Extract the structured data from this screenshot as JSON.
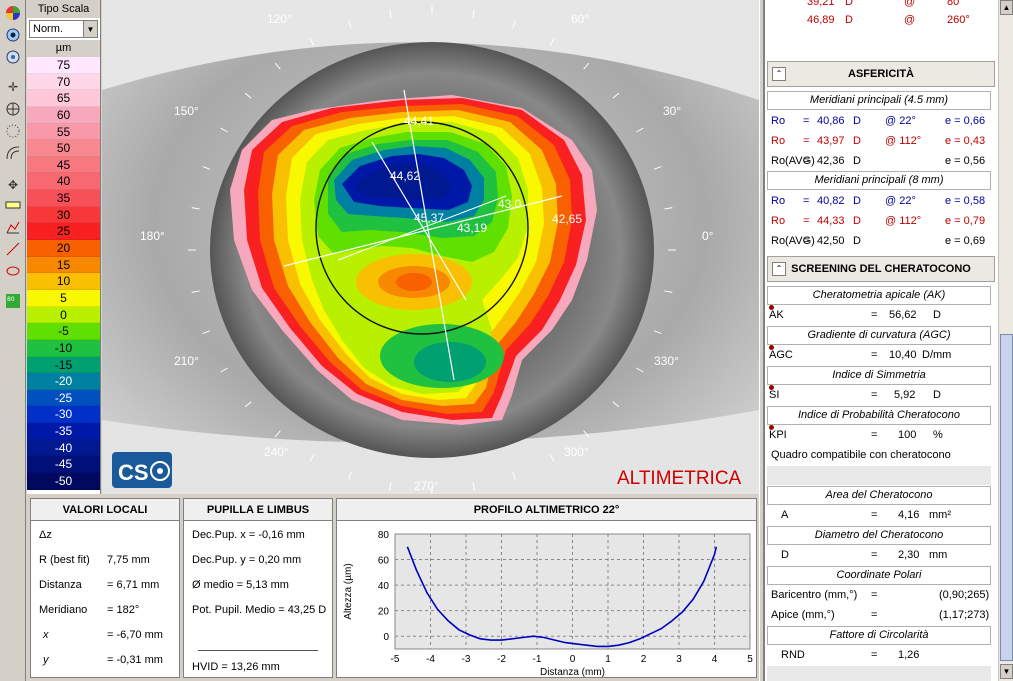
{
  "scale": {
    "title": "Tipo Scala",
    "select_value": "Norm.",
    "unit": "µm",
    "steps": [
      {
        "v": "75",
        "c": "#ffe8ff"
      },
      {
        "v": "70",
        "c": "#ffd8e8"
      },
      {
        "v": "65",
        "c": "#ffc8d8"
      },
      {
        "v": "60",
        "c": "#f8a8bc"
      },
      {
        "v": "55",
        "c": "#f898a8"
      },
      {
        "v": "50",
        "c": "#f88890"
      },
      {
        "v": "45",
        "c": "#f87880"
      },
      {
        "v": "40",
        "c": "#f86870"
      },
      {
        "v": "35",
        "c": "#f85058"
      },
      {
        "v": "30",
        "c": "#f83838"
      },
      {
        "v": "25",
        "c": "#f82020"
      },
      {
        "v": "20",
        "c": "#f86000"
      },
      {
        "v": "15",
        "c": "#f88800"
      },
      {
        "v": "10",
        "c": "#f8c000"
      },
      {
        "v": "5",
        "c": "#f8f800"
      },
      {
        "v": "0",
        "c": "#b8f000"
      },
      {
        "v": "-5",
        "c": "#60e000"
      },
      {
        "v": "-10",
        "c": "#20c040"
      },
      {
        "v": "-15",
        "c": "#00a070"
      },
      {
        "v": "-20",
        "c": "#0080a0"
      },
      {
        "v": "-25",
        "c": "#0050c0"
      },
      {
        "v": "-30",
        "c": "#0030c8"
      },
      {
        "v": "-35",
        "c": "#0018a8"
      },
      {
        "v": "-40",
        "c": "#001890"
      },
      {
        "v": "-45",
        "c": "#001078"
      },
      {
        "v": "-50",
        "c": "#000860"
      }
    ]
  },
  "map": {
    "angles": {
      "a120": "120°",
      "a60": "60°",
      "a150": "150°",
      "a30": "30°",
      "a180": "180°",
      "a0": "0°",
      "a210": "210°",
      "a330": "330°",
      "a240": "240°",
      "a300": "300°",
      "a270": "270°"
    },
    "labels": {
      "l1": "44,41",
      "l2": "44,62",
      "l3": "45,37",
      "l4": "43,19",
      "l5": "43,0",
      "l6": "42,65"
    },
    "logo": "CS",
    "mode": "ALTIMETRICA"
  },
  "right": {
    "top_rows": [
      {
        "a": "39,21",
        "b": "D",
        "c": "@",
        "d": "80°",
        "color": "red"
      },
      {
        "a": "46,89",
        "b": "D",
        "c": "@",
        "d": "260°",
        "color": "red"
      }
    ],
    "aspher_title": "ASFERICITÀ",
    "aspher_sub1": "Meridiani principali (4.5 mm)",
    "aspher_rows1": [
      {
        "k": "Ro",
        "eq": "=",
        "v": "40,86",
        "u": "D",
        "at": "@ 22°",
        "e": "e = 0,66",
        "color": "blue"
      },
      {
        "k": "Ro",
        "eq": "=",
        "v": "43,97",
        "u": "D",
        "at": "@ 112°",
        "e": "e = 0,43",
        "color": "red"
      },
      {
        "k": "Ro(AVG)",
        "eq": "=",
        "v": "42,36",
        "u": "D",
        "at": "",
        "e": "e = 0,56",
        "color": "black"
      }
    ],
    "aspher_sub2": "Meridiani principali (8 mm)",
    "aspher_rows2": [
      {
        "k": "Ro",
        "eq": "=",
        "v": "40,82",
        "u": "D",
        "at": "@ 22°",
        "e": "e = 0,58",
        "color": "blue"
      },
      {
        "k": "Ro",
        "eq": "=",
        "v": "44,33",
        "u": "D",
        "at": "@ 112°",
        "e": "e = 0,79",
        "color": "red"
      },
      {
        "k": "Ro(AVG)",
        "eq": "=",
        "v": "42,50",
        "u": "D",
        "at": "",
        "e": "e = 0,69",
        "color": "black"
      }
    ],
    "kc_title": "SCREENING  DEL  CHERATOCONO",
    "ak_sub": "Cheratometria apicale (AK)",
    "ak": {
      "k": "AK",
      "eq": "=",
      "v": "56,62",
      "u": "D"
    },
    "agc_sub": "Gradiente di curvatura  (AGC)",
    "agc": {
      "k": "AGC",
      "eq": "=",
      "v": "10,40",
      "u": "D/mm"
    },
    "si_sub": "Indice di Simmetria",
    "si": {
      "k": "SI",
      "eq": "=",
      "v": "5,92",
      "u": "D"
    },
    "kpi_sub": "Indice di Probabilità Cheratocono",
    "kpi": {
      "k": "KPI",
      "eq": "=",
      "v": "100",
      "u": "%"
    },
    "compat": "Quadro compatibile con cheratocono",
    "area_sub": "Area del Cheratocono",
    "area": {
      "k": "A",
      "eq": "=",
      "v": "4,16",
      "u": "mm²"
    },
    "diam_sub": "Diametro del Cheratocono",
    "diam": {
      "k": "D",
      "eq": "=",
      "v": "2,30",
      "u": "mm"
    },
    "polar_sub": "Coordinate Polari",
    "polar": [
      {
        "k": "Baricentro (mm,°)",
        "eq": "=",
        "v": "(0,90;265)"
      },
      {
        "k": "Apice (mm,°)",
        "eq": "=",
        "v": "(1,17;273)"
      }
    ],
    "circ_sub": "Fattore di Circolarità",
    "rnd": {
      "k": "RND",
      "eq": "=",
      "v": "1,26"
    }
  },
  "local": {
    "title": "VALORI LOCALI",
    "dz": "Δz",
    "rows": [
      {
        "k": "R (best fit)",
        "v": "7,75 mm"
      },
      {
        "k": "Distanza",
        "v": "= 6,71 mm"
      },
      {
        "k": "Meridiano",
        "v": "= 182°"
      },
      {
        "k": "x",
        "v": "= -6,70 mm"
      },
      {
        "k": "y",
        "v": "= -0,31 mm"
      }
    ]
  },
  "pupil": {
    "title": "PUPILLA E LIMBUS",
    "rows": [
      "Dec.Pup. x = -0,16 mm",
      "Dec.Pup. y = 0,20 mm",
      "Ø medio = 5,13 mm",
      "Pot. Pupil. Medio = 43,25 D"
    ],
    "hvid": "HVID = 13,26 mm"
  },
  "profile_title": "PROFILO ALTIMETRICO 22°",
  "chart_data": {
    "type": "line",
    "title": "PROFILO ALTIMETRICO 22°",
    "xlabel": "Distanza (mm)",
    "ylabel": "Altezza (µm)",
    "xlim": [
      -5,
      5
    ],
    "ylim": [
      -10,
      80
    ],
    "xticks": [
      -5,
      -4,
      -3,
      -2,
      -1,
      0,
      1,
      2,
      3,
      4,
      5
    ],
    "yticks": [
      0,
      20,
      40,
      60,
      80
    ],
    "grid": true,
    "series": [
      {
        "color": "#0000c0",
        "x": [
          -4.65,
          -4.4,
          -4.1,
          -3.8,
          -3.5,
          -3.2,
          -2.9,
          -2.6,
          -2.3,
          -2.0,
          -1.7,
          -1.4,
          -1.1,
          -0.8,
          -0.5,
          -0.2,
          0.1,
          0.4,
          0.7,
          1.0,
          1.3,
          1.6,
          1.9,
          2.2,
          2.5,
          2.8,
          3.1,
          3.4,
          3.7,
          4.0,
          4.05
        ],
        "y": [
          70,
          52,
          34,
          21,
          12,
          5,
          1,
          -2,
          -3,
          -3,
          -2,
          -1,
          0,
          -1,
          -3,
          -5,
          -6,
          -7,
          -8,
          -8,
          -7,
          -5,
          -2,
          2,
          6,
          12,
          19,
          29,
          43,
          64,
          70
        ]
      }
    ]
  }
}
